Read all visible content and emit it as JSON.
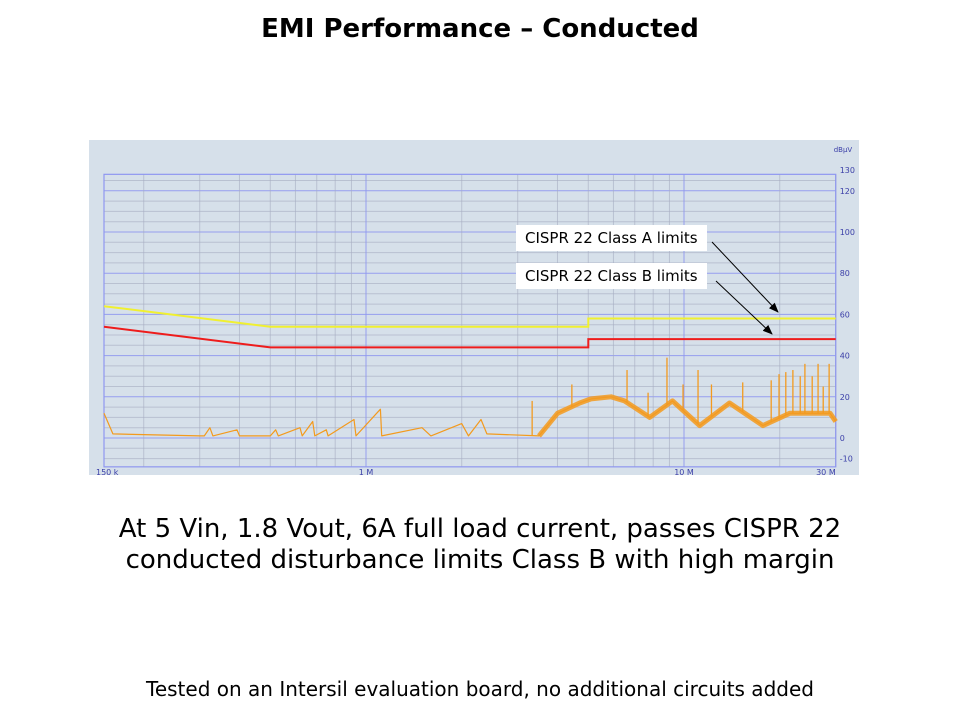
{
  "slide": {
    "title": "EMI Performance – Conducted",
    "body_line1": "At 5 Vin, 1.8 Vout, 6A full load current, passes CISPR 22",
    "body_line2": "conducted disturbance limits Class B with high margin",
    "footer": "Tested on an Intersil evaluation board, no additional circuits added"
  },
  "chart_data": {
    "type": "line",
    "x_scale": "log",
    "x_unit": "Hz",
    "xlim_mhz": [
      0.15,
      30
    ],
    "x_ticks": [
      {
        "value": 0.15,
        "label": "150 k"
      },
      {
        "value": 1,
        "label": "1 M"
      },
      {
        "value": 10,
        "label": "10 M"
      },
      {
        "value": 30,
        "label": "30 M"
      }
    ],
    "ylabel": "dBµV",
    "ylim": [
      -14,
      128
    ],
    "y_ticks": [
      130,
      120,
      100,
      80,
      60,
      40,
      20,
      0,
      -10
    ],
    "grid": true,
    "annotations": [
      {
        "text": "CISPR 22 Class A limits",
        "target_series": "class_a"
      },
      {
        "text": "CISPR 22 Class B limits",
        "target_series": "class_b"
      }
    ],
    "colors": {
      "background": "#d6e0ea",
      "grid_minor": "#a6adc2",
      "grid_major": "#8f97f0",
      "class_a": "#f0f030",
      "class_b": "#ee1c1c",
      "emission": "#f39a1e"
    },
    "series": [
      {
        "id": "class_a",
        "points": [
          [
            0.15,
            64
          ],
          [
            0.5,
            54
          ],
          [
            5,
            54
          ],
          [
            5,
            58
          ],
          [
            30,
            58
          ]
        ]
      },
      {
        "id": "class_b",
        "points": [
          [
            0.15,
            54
          ],
          [
            0.5,
            44
          ],
          [
            5,
            44
          ],
          [
            5,
            48
          ],
          [
            30,
            48
          ]
        ]
      },
      {
        "id": "emission",
        "points": [
          [
            0.15,
            12
          ],
          [
            0.16,
            2
          ],
          [
            0.3,
            1
          ],
          [
            0.31,
            1
          ],
          [
            0.323,
            5
          ],
          [
            0.33,
            1
          ],
          [
            0.393,
            4
          ],
          [
            0.4,
            1
          ],
          [
            0.5,
            1
          ],
          [
            0.52,
            4
          ],
          [
            0.53,
            1
          ],
          [
            0.62,
            5
          ],
          [
            0.63,
            1
          ],
          [
            0.68,
            8
          ],
          [
            0.69,
            1
          ],
          [
            0.75,
            4
          ],
          [
            0.76,
            1
          ],
          [
            0.917,
            9
          ],
          [
            0.93,
            1
          ],
          [
            1.11,
            14
          ],
          [
            1.12,
            1
          ],
          [
            1.5,
            5
          ],
          [
            1.6,
            1
          ],
          [
            2.0,
            7
          ],
          [
            2.1,
            1
          ],
          [
            2.3,
            9
          ],
          [
            2.4,
            2
          ],
          [
            3.5,
            1
          ],
          [
            4.0,
            12
          ],
          [
            4.7,
            17
          ],
          [
            5.1,
            19
          ],
          [
            5.9,
            20
          ],
          [
            6.5,
            18
          ],
          [
            7.8,
            10
          ],
          [
            9.2,
            18
          ],
          [
            11.2,
            6
          ],
          [
            13.9,
            17
          ],
          [
            17.7,
            6
          ],
          [
            21.5,
            12
          ],
          [
            28.8,
            12
          ],
          [
            30,
            8
          ]
        ],
        "spikes": [
          [
            3.33,
            18
          ],
          [
            4.44,
            26
          ],
          [
            6.62,
            33
          ],
          [
            7.71,
            22
          ],
          [
            8.84,
            39
          ],
          [
            9.93,
            26
          ],
          [
            11.07,
            33
          ],
          [
            12.2,
            26
          ],
          [
            15.3,
            27
          ],
          [
            18.8,
            28
          ],
          [
            19.9,
            31
          ],
          [
            20.9,
            32
          ],
          [
            22.0,
            33
          ],
          [
            23.2,
            30
          ],
          [
            24.0,
            36
          ],
          [
            25.3,
            30
          ],
          [
            26.4,
            36
          ],
          [
            27.4,
            25
          ],
          [
            28.6,
            36
          ]
        ]
      }
    ]
  }
}
